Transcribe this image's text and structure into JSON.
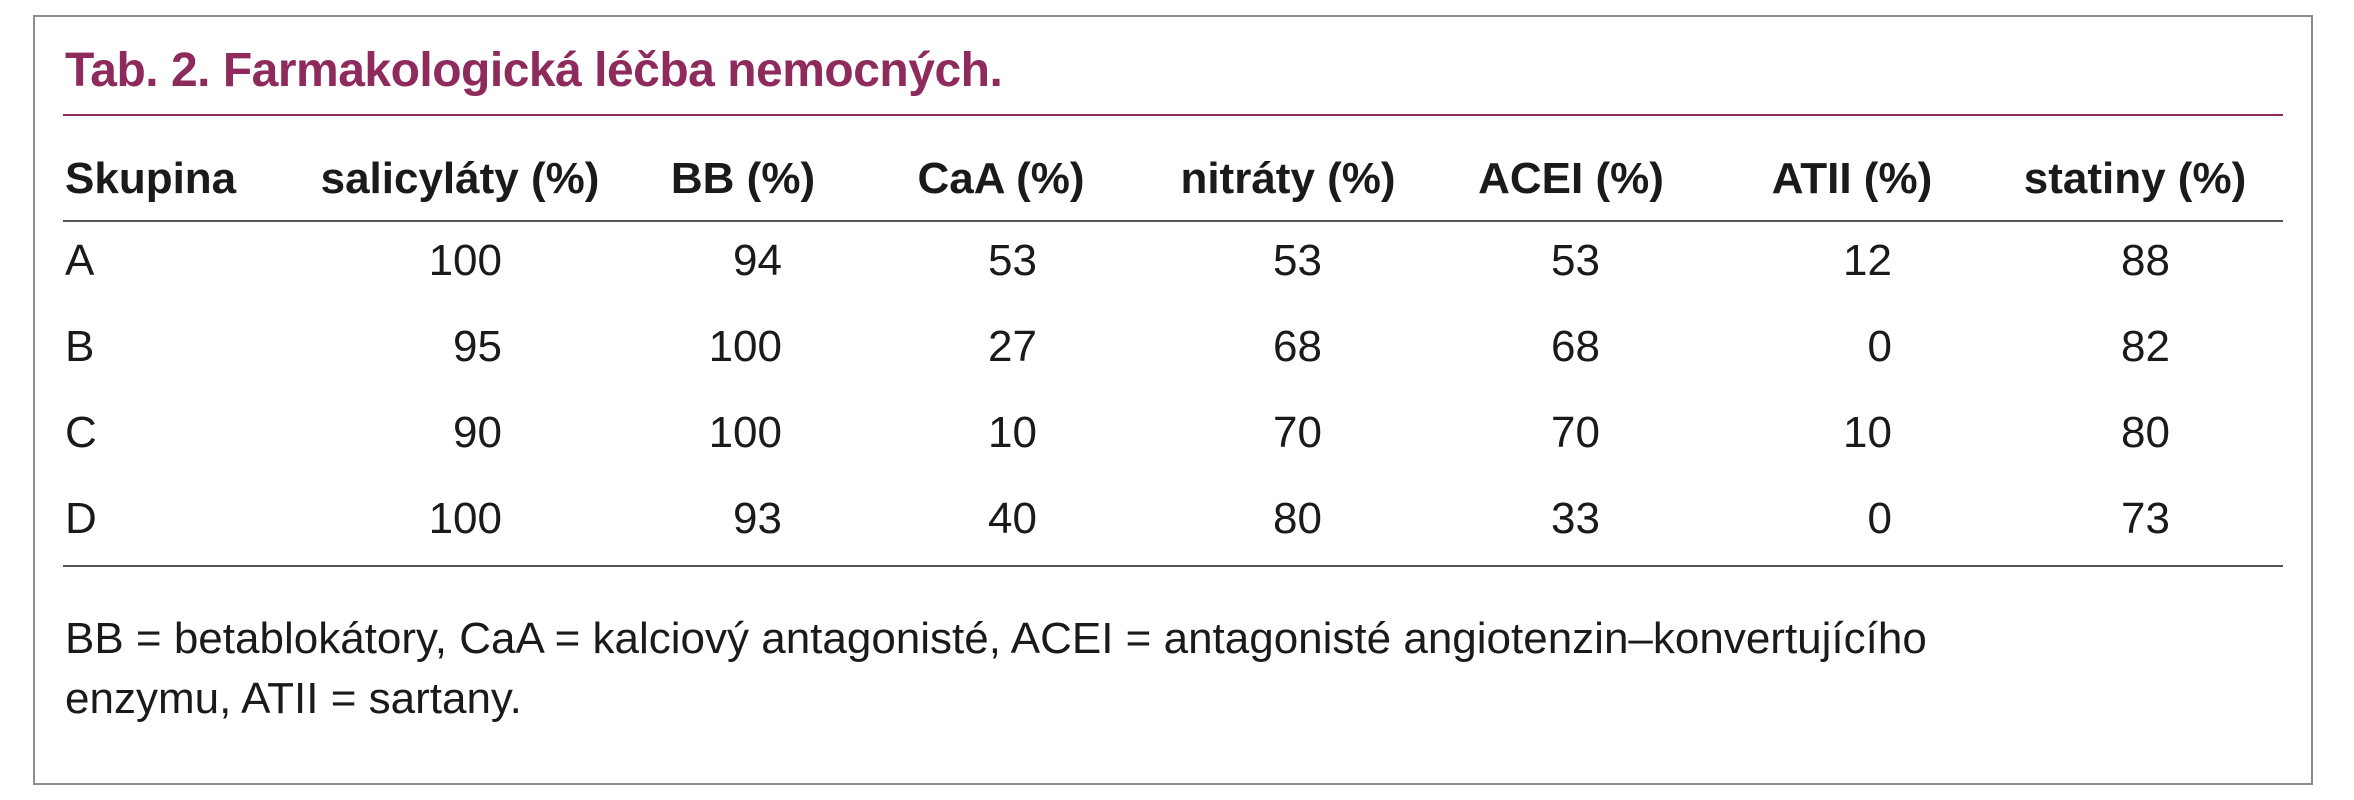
{
  "header": {
    "title": "Tab. 2. Farmakologická léčba nemocných."
  },
  "table": {
    "columns": [
      "Skupina",
      "salicyláty (%)",
      "BB (%)",
      "CaA (%)",
      "nitráty (%)",
      "ACEI (%)",
      "ATII (%)",
      "statiny (%)"
    ],
    "rows": [
      [
        "A",
        100,
        94,
        53,
        53,
        53,
        12,
        88
      ],
      [
        "B",
        95,
        100,
        27,
        68,
        68,
        0,
        82
      ],
      [
        "C",
        90,
        100,
        10,
        70,
        70,
        10,
        80
      ],
      [
        "D",
        100,
        93,
        40,
        80,
        33,
        0,
        73
      ]
    ]
  },
  "footnote": [
    "BB = betablokátory, CaA = kalciový antagonisté, ACEI = antagonisté angiotenzin–konvertujícího",
    "enzymu, ATII = sartany."
  ]
}
